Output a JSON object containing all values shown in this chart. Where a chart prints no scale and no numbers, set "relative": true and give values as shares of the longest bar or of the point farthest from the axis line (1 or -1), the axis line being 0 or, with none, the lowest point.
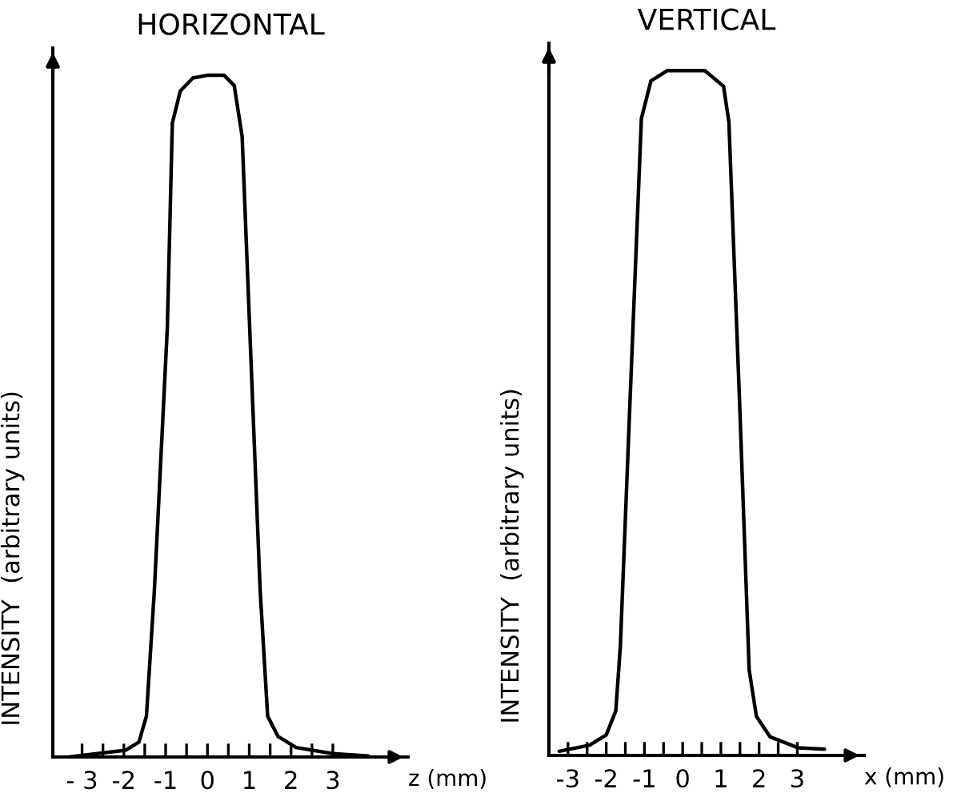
{
  "chart_data": [
    {
      "type": "line",
      "title": "HORIZONTAL",
      "xlabel": "z (mm)",
      "ylabel": "INTENSITY  (arbitrary units)",
      "relative": true,
      "xlim": [
        -3.7,
        4.8
      ],
      "xticks": [
        {
          "value": -3,
          "label": "- 3"
        },
        {
          "value": -2.5,
          "label": null
        },
        {
          "value": -2,
          "label": "-2"
        },
        {
          "value": -1.5,
          "label": null
        },
        {
          "value": -1,
          "label": "-1"
        },
        {
          "value": -0.5,
          "label": null
        },
        0,
        {
          "value": 0.5,
          "label": null
        },
        1,
        {
          "value": 1.5,
          "label": null
        },
        2,
        {
          "value": 2.5,
          "label": null
        },
        3
      ],
      "tick_labels": "x",
      "grid": false,
      "legend": false,
      "series": [
        {
          "color": "#000000",
          "x": [
            -3.31,
            -1.95,
            -1.64,
            -1.46,
            -1.27,
            -0.96,
            -0.84,
            -0.65,
            -0.35,
            0,
            0.4,
            0.64,
            0.83,
            1.01,
            1.26,
            1.44,
            1.69,
            2.12,
            2.99,
            3.85
          ],
          "values": [
            0,
            0.01,
            0.022,
            0.06,
            0.245,
            0.63,
            0.93,
            0.977,
            0.996,
            1,
            1,
            0.985,
            0.91,
            0.63,
            0.245,
            0.06,
            0.03,
            0.014,
            0.005,
            0.0015
          ]
        }
      ]
    },
    {
      "type": "line",
      "title": "VERTICAL",
      "xlabel": "x (mm)",
      "ylabel": "INTENSITY  (arbitrary units)",
      "relative": true,
      "xlim": [
        -3.5,
        4.75
      ],
      "xticks": [
        -3,
        {
          "value": -2.5,
          "label": null
        },
        -2,
        {
          "value": -1.5,
          "label": null
        },
        {
          "value": -1,
          "label": "-1"
        },
        {
          "value": -0.5,
          "label": null
        },
        0,
        {
          "value": 0.5,
          "label": null
        },
        1,
        {
          "value": 1.5,
          "label": null
        },
        2,
        {
          "value": 2.5,
          "label": null
        },
        3
      ],
      "tick_labels": "x",
      "grid": false,
      "legend": false,
      "series": [
        {
          "color": "#000000",
          "x": [
            -3.23,
            -2.43,
            -2.0,
            -1.75,
            -1.63,
            -1.39,
            -1.08,
            -0.83,
            -0.4,
            0.58,
            1.07,
            1.21,
            1.5,
            1.74,
            1.93,
            2.29,
            3.03,
            3.71
          ],
          "values": [
            0.006,
            0.015,
            0.03,
            0.065,
            0.16,
            0.5,
            0.93,
            0.985,
            1,
            1,
            0.977,
            0.925,
            0.5,
            0.125,
            0.057,
            0.027,
            0.011,
            0.009
          ]
        }
      ]
    }
  ]
}
